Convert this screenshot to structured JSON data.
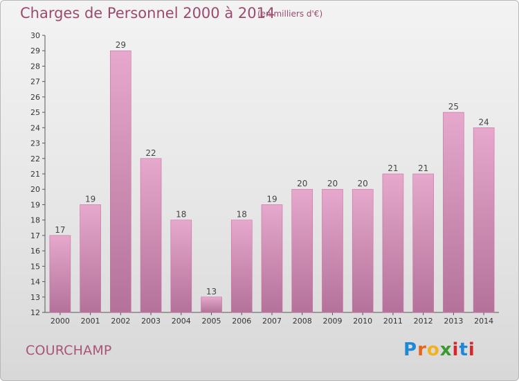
{
  "header": {
    "title": "Charges de Personnel 2000 à 2014",
    "subtitle": "(en milliers d'€)"
  },
  "footer": {
    "commune": "COURCHAMP",
    "logo": [
      "P",
      "r",
      "o",
      "x",
      "i",
      "t",
      "i"
    ]
  },
  "colors": {
    "bar_top": "#e6a8cc",
    "bar_bottom": "#b4729a",
    "bar_edge": "#c9719e",
    "title": "#9b4a6e"
  },
  "chart_data": {
    "type": "bar",
    "title": "Charges de Personnel 2000 à 2014",
    "subtitle": "(en milliers d'€)",
    "categories": [
      "2000",
      "2001",
      "2002",
      "2003",
      "2004",
      "2005",
      "2006",
      "2007",
      "2008",
      "2009",
      "2010",
      "2011",
      "2012",
      "2013",
      "2014"
    ],
    "values": [
      17,
      19,
      29,
      22,
      18,
      13,
      18,
      19,
      20,
      20,
      20,
      21,
      21,
      25,
      24
    ],
    "data_labels": [
      "17",
      "19",
      "29",
      "22",
      "18",
      "13",
      "18",
      "19",
      "20",
      "20",
      "20",
      "21",
      "21",
      "25",
      "24"
    ],
    "ylim": [
      12,
      30
    ],
    "yticks": [
      12,
      13,
      14,
      15,
      16,
      17,
      18,
      19,
      20,
      21,
      22,
      23,
      24,
      25,
      26,
      27,
      28,
      29,
      30
    ],
    "ytick_labels": [
      "12",
      "13",
      "14",
      "15",
      "16",
      "17",
      "18",
      "19",
      "20",
      "21",
      "22",
      "23",
      "24",
      "25",
      "26",
      "27",
      "28",
      "29",
      "30"
    ],
    "xlabel": "",
    "ylabel": "",
    "grid": false,
    "legend": "none"
  }
}
